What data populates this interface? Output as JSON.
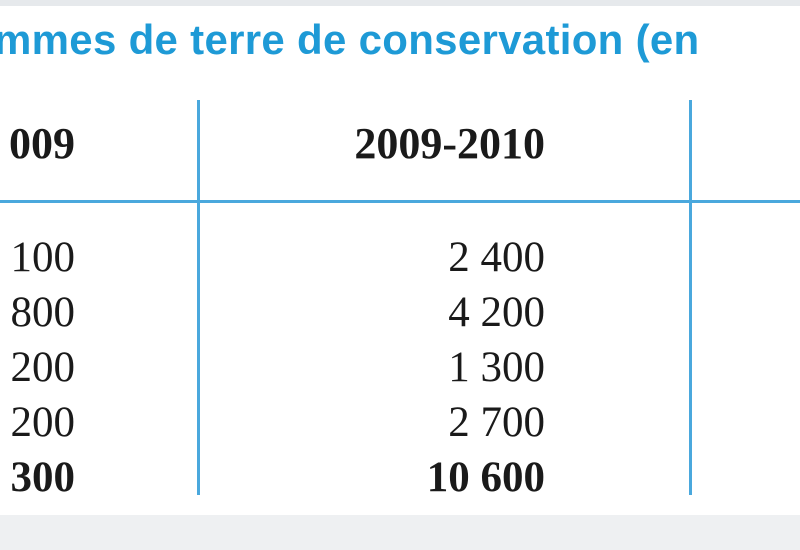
{
  "table": {
    "title": "mmes de terre de conservation (en",
    "headers": [
      "009",
      "2009-2010"
    ],
    "rows": [
      [
        "100",
        "2 400"
      ],
      [
        "800",
        "4 200"
      ],
      [
        "200",
        "1 300"
      ],
      [
        "200",
        "2 700"
      ]
    ],
    "total": [
      "300",
      "10 600"
    ]
  }
}
